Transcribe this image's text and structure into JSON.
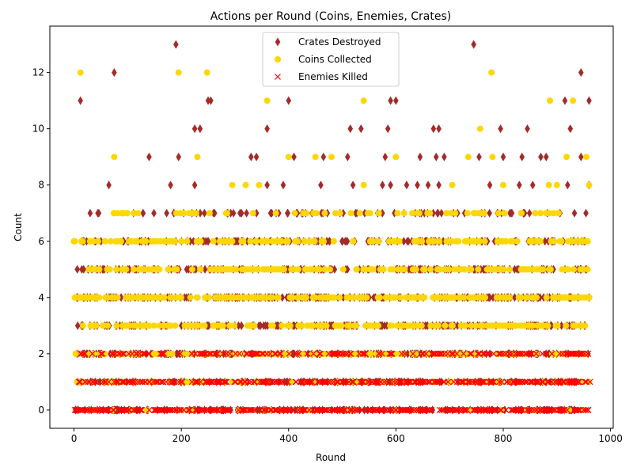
{
  "chart_data": {
    "type": "scatter",
    "title": "Actions per Round (Coins, Enemies, Crates)",
    "xlabel": "Round",
    "ylabel": "Count",
    "xlim": [
      -45,
      1005
    ],
    "ylim": [
      -0.65,
      13.65
    ],
    "xticks": [
      0,
      200,
      400,
      600,
      800,
      1000
    ],
    "yticks": [
      0,
      2,
      4,
      6,
      8,
      10,
      12
    ],
    "legend_position": "top-center",
    "grid": false,
    "series": [
      {
        "name": "Crates Destroyed",
        "marker": "thin-diamond",
        "color": "#a52a2a",
        "points": [
          [
            12,
            11
          ],
          [
            75,
            12
          ],
          [
            190,
            13
          ],
          [
            745,
            13
          ],
          [
            945,
            12
          ],
          [
            250,
            11
          ],
          [
            255,
            11
          ],
          [
            400,
            11
          ],
          [
            590,
            11
          ],
          [
            600,
            11
          ],
          [
            915,
            11
          ],
          [
            960,
            11
          ],
          [
            225,
            10
          ],
          [
            235,
            10
          ],
          [
            360,
            10
          ],
          [
            515,
            10
          ],
          [
            535,
            10
          ],
          [
            585,
            10
          ],
          [
            670,
            10
          ],
          [
            680,
            10
          ],
          [
            795,
            10
          ],
          [
            845,
            10
          ],
          [
            925,
            10
          ],
          [
            65,
            8
          ],
          [
            180,
            8
          ],
          [
            225,
            8
          ],
          [
            360,
            8
          ],
          [
            390,
            8
          ],
          [
            460,
            8
          ],
          [
            520,
            8
          ],
          [
            575,
            8
          ],
          [
            590,
            8
          ],
          [
            620,
            8
          ],
          [
            640,
            8
          ],
          [
            660,
            8
          ],
          [
            680,
            8
          ],
          [
            775,
            8
          ],
          [
            830,
            8
          ],
          [
            855,
            8
          ],
          [
            920,
            8
          ],
          [
            960,
            8
          ],
          [
            140,
            9
          ],
          [
            195,
            9
          ],
          [
            330,
            9
          ],
          [
            340,
            9
          ],
          [
            410,
            9
          ],
          [
            465,
            9
          ],
          [
            510,
            9
          ],
          [
            580,
            9
          ],
          [
            645,
            9
          ],
          [
            675,
            9
          ],
          [
            690,
            9
          ],
          [
            755,
            9
          ],
          [
            800,
            9
          ],
          [
            835,
            9
          ],
          [
            870,
            9
          ],
          [
            880,
            9
          ],
          [
            945,
            9
          ]
        ],
        "bands": [
          {
            "y": 7,
            "x_from": 25,
            "x_to": 958,
            "count": 80
          },
          {
            "y": 6,
            "x_from": 10,
            "x_to": 955,
            "count": 150
          },
          {
            "y": 5,
            "x_from": 2,
            "x_to": 962,
            "count": 160
          },
          {
            "y": 4,
            "x_from": 0,
            "x_to": 962,
            "count": 190
          },
          {
            "y": 3,
            "x_from": 5,
            "x_to": 962,
            "count": 170
          },
          {
            "y": 2,
            "x_from": 5,
            "x_to": 962,
            "count": 150
          },
          {
            "y": 1,
            "x_from": 5,
            "x_to": 962,
            "count": 140
          },
          {
            "y": 0,
            "x_from": 0,
            "x_to": 962,
            "count": 160
          }
        ]
      },
      {
        "name": "Coins Collected",
        "marker": "circle",
        "color": "#ffd700",
        "points": [
          [
            12,
            12
          ],
          [
            195,
            12
          ],
          [
            248,
            12
          ],
          [
            778,
            12
          ],
          [
            360,
            11
          ],
          [
            540,
            11
          ],
          [
            930,
            11
          ],
          [
            887,
            11
          ],
          [
            757,
            10
          ],
          [
            75,
            9
          ],
          [
            230,
            9
          ],
          [
            400,
            9
          ],
          [
            450,
            9
          ],
          [
            480,
            9
          ],
          [
            600,
            9
          ],
          [
            735,
            9
          ],
          [
            780,
            9
          ],
          [
            918,
            9
          ],
          [
            955,
            9
          ],
          [
            295,
            8
          ],
          [
            320,
            8
          ],
          [
            345,
            8
          ],
          [
            540,
            8
          ],
          [
            705,
            8
          ],
          [
            800,
            8
          ],
          [
            885,
            8
          ],
          [
            900,
            8
          ],
          [
            960,
            8
          ],
          [
            0,
            6
          ],
          [
            30,
            6
          ]
        ],
        "bands": [
          {
            "y": 7,
            "x_from": 60,
            "x_to": 952,
            "count": 70
          },
          {
            "y": 6,
            "x_from": 0,
            "x_to": 958,
            "count": 140
          },
          {
            "y": 5,
            "x_from": 25,
            "x_to": 962,
            "count": 170
          },
          {
            "y": 4,
            "x_from": 0,
            "x_to": 965,
            "count": 220
          },
          {
            "y": 3,
            "x_from": 15,
            "x_to": 955,
            "count": 170
          },
          {
            "y": 2,
            "x_from": 3,
            "x_to": 955,
            "count": 150
          },
          {
            "y": 1,
            "x_from": 3,
            "x_to": 960,
            "count": 90
          },
          {
            "y": 0,
            "x_from": 0,
            "x_to": 960,
            "count": 50
          }
        ]
      },
      {
        "name": "Enemies Killed",
        "marker": "x",
        "color": "#ff0000",
        "points": [],
        "bands": [
          {
            "y": 2,
            "x_from": 10,
            "x_to": 962,
            "count": 200
          },
          {
            "y": 1,
            "x_from": 5,
            "x_to": 962,
            "count": 320
          },
          {
            "y": 0,
            "x_from": 0,
            "x_to": 962,
            "count": 360
          }
        ]
      }
    ]
  }
}
